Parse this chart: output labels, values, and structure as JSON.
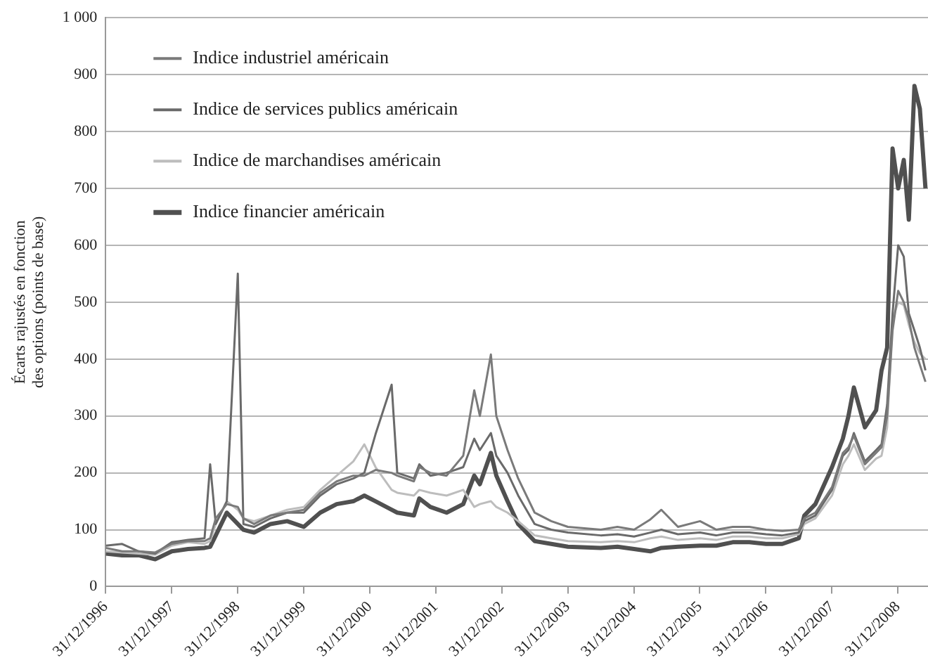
{
  "chart_data": {
    "type": "line",
    "ylabel": "Écarts rajustés en fonction\ndes options (points de base)",
    "x": [
      "1997-01",
      "1997-04",
      "1997-07",
      "1997-10",
      "1998-01",
      "1998-04",
      "1998-07",
      "1998-08",
      "1998-09",
      "1998-11",
      "1999-01",
      "1999-02",
      "1999-04",
      "1999-07",
      "1999-10",
      "2000-01",
      "2000-04",
      "2000-07",
      "2000-10",
      "2000-12",
      "2001-02",
      "2001-05",
      "2001-06",
      "2001-09",
      "2001-10",
      "2001-12",
      "2002-03",
      "2002-06",
      "2002-08",
      "2002-09",
      "2002-11",
      "2002-12",
      "2003-02",
      "2003-04",
      "2003-07",
      "2003-10",
      "2004-01",
      "2004-07",
      "2004-10",
      "2005-01",
      "2005-04",
      "2005-06",
      "2005-09",
      "2006-01",
      "2006-04",
      "2006-07",
      "2006-10",
      "2007-01",
      "2007-04",
      "2007-07",
      "2007-08",
      "2007-10",
      "2008-01",
      "2008-03",
      "2008-04",
      "2008-05",
      "2008-07",
      "2008-09",
      "2008-10",
      "2008-11",
      "2008-12",
      "2009-01",
      "2009-02",
      "2009-03",
      "2009-04",
      "2009-05",
      "2009-06"
    ],
    "series": [
      {
        "name": "Indice industriel américain",
        "color": "#7a7a7a",
        "values": [
          68,
          62,
          62,
          60,
          75,
          80,
          80,
          85,
          120,
          145,
          140,
          120,
          110,
          125,
          130,
          135,
          165,
          185,
          195,
          195,
          205,
          200,
          195,
          185,
          210,
          200,
          195,
          230,
          345,
          300,
          408,
          300,
          240,
          190,
          130,
          115,
          105,
          100,
          105,
          100,
          118,
          135,
          105,
          115,
          100,
          105,
          105,
          100,
          98,
          100,
          120,
          130,
          175,
          235,
          245,
          265,
          215,
          235,
          245,
          300,
          450,
          520,
          500,
          470,
          420,
          390,
          360
        ]
      },
      {
        "name": "Indice de services publics américain",
        "color": "#6a6a6a",
        "values": [
          72,
          75,
          62,
          58,
          78,
          82,
          85,
          215,
          110,
          150,
          550,
          110,
          105,
          120,
          130,
          130,
          160,
          180,
          190,
          200,
          268,
          355,
          200,
          190,
          215,
          195,
          200,
          210,
          260,
          240,
          270,
          230,
          200,
          160,
          110,
          100,
          95,
          90,
          92,
          88,
          95,
          100,
          92,
          95,
          90,
          95,
          95,
          92,
          90,
          95,
          115,
          125,
          170,
          230,
          240,
          270,
          220,
          240,
          250,
          320,
          480,
          600,
          580,
          480,
          450,
          420,
          380
        ]
      },
      {
        "name": "Indice de marchandises américain",
        "color": "#bdbdbd",
        "values": [
          62,
          60,
          58,
          56,
          72,
          78,
          75,
          80,
          110,
          150,
          135,
          120,
          115,
          125,
          135,
          140,
          170,
          195,
          220,
          250,
          210,
          170,
          165,
          160,
          170,
          165,
          160,
          170,
          140,
          145,
          150,
          140,
          130,
          115,
          90,
          85,
          80,
          78,
          80,
          78,
          85,
          88,
          82,
          85,
          82,
          88,
          88,
          85,
          85,
          92,
          110,
          120,
          160,
          215,
          230,
          250,
          205,
          225,
          230,
          280,
          470,
          500,
          495,
          460,
          430,
          410,
          400
        ]
      },
      {
        "name": "Indice financier américain",
        "color": "#505050",
        "values": [
          58,
          55,
          55,
          48,
          62,
          66,
          68,
          70,
          90,
          130,
          110,
          100,
          95,
          110,
          115,
          105,
          130,
          145,
          150,
          160,
          150,
          135,
          130,
          125,
          155,
          140,
          130,
          145,
          195,
          180,
          235,
          195,
          150,
          110,
          80,
          75,
          70,
          68,
          70,
          66,
          62,
          68,
          70,
          72,
          72,
          78,
          78,
          75,
          75,
          85,
          125,
          145,
          210,
          260,
          300,
          350,
          280,
          310,
          380,
          420,
          770,
          700,
          750,
          645,
          880,
          840,
          700
        ]
      }
    ],
    "xlim": [
      "1996-12-31",
      "2009-06-15"
    ],
    "xticks": [
      {
        "value": "1996-12-31",
        "label": "31/12/1996"
      },
      {
        "value": "1997-12-31",
        "label": "31/12/1997"
      },
      {
        "value": "1998-12-31",
        "label": "31/12/1998"
      },
      {
        "value": "1999-12-31",
        "label": "31/12/1999"
      },
      {
        "value": "2000-12-31",
        "label": "31/12/2000"
      },
      {
        "value": "2001-12-31",
        "label": "31/12/2001"
      },
      {
        "value": "2002-12-31",
        "label": "31/12/2002"
      },
      {
        "value": "2003-12-31",
        "label": "31/12/2003"
      },
      {
        "value": "2004-12-31",
        "label": "31/12/2004"
      },
      {
        "value": "2005-12-31",
        "label": "31/12/2005"
      },
      {
        "value": "2006-12-31",
        "label": "31/12/2006"
      },
      {
        "value": "2007-12-31",
        "label": "31/12/2007"
      },
      {
        "value": "2008-12-31",
        "label": "31/12/2008"
      }
    ],
    "ylim": [
      0,
      1000
    ],
    "yticks": [
      0,
      100,
      200,
      300,
      400,
      500,
      600,
      700,
      800,
      900,
      {
        "value": 1000,
        "label": "1 000"
      }
    ],
    "grid": "y",
    "legend": "top left",
    "marker": "none",
    "line_style": "solid"
  }
}
